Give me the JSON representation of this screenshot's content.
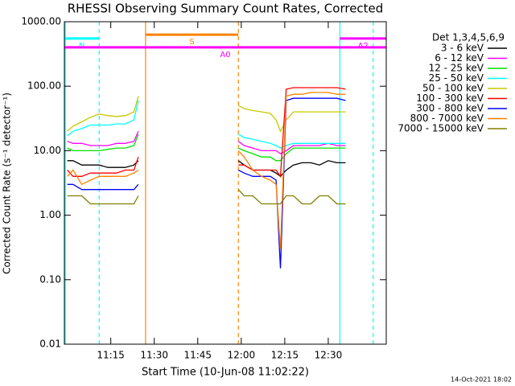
{
  "chart_data": {
    "type": "line",
    "title": "RHESSI Observing Summary Count Rates, Corrected",
    "xlabel": "Start Time (10-Jun-08 11:02:22)",
    "ylabel": "Corrected Count Rate (s⁻¹ detector⁻¹)",
    "legend_title": "Det 1,3,4,5,6,9",
    "footer": "14-Oct-2021 18:02",
    "log_y": true,
    "xlim": [
      659,
      770
    ],
    "ylim": [
      0.01,
      1000
    ],
    "xticks": [
      {
        "value": 675,
        "label": "11:15"
      },
      {
        "value": 690,
        "label": "11:30"
      },
      {
        "value": 705,
        "label": "11:45"
      },
      {
        "value": 720,
        "label": "12:00"
      },
      {
        "value": 735,
        "label": "12:15"
      },
      {
        "value": 750,
        "label": "12:30"
      }
    ],
    "yticks": [
      {
        "value": 1000,
        "label": "1000.00"
      },
      {
        "value": 100,
        "label": "100.00"
      },
      {
        "value": 10,
        "label": "10.00"
      },
      {
        "value": 1,
        "label": "1.00"
      },
      {
        "value": 0.1,
        "label": "0.10"
      },
      {
        "value": 0.01,
        "label": "0.01"
      }
    ],
    "x": [
      660,
      662,
      665,
      668,
      671,
      674,
      677,
      680,
      683,
      684.5,
      700,
      719,
      721,
      724,
      727,
      730,
      732,
      733.5,
      735.5,
      738,
      741,
      744,
      747,
      750,
      753,
      756
    ],
    "series": [
      {
        "name": "3 - 6 keV",
        "color": "#000000",
        "values": [
          7,
          7,
          6,
          6,
          6,
          5.5,
          5.5,
          5.5,
          6,
          7,
          null,
          7,
          6,
          5,
          5,
          5,
          4.5,
          4,
          5,
          6,
          6.5,
          6.5,
          6,
          7,
          6.5,
          6.5
        ]
      },
      {
        "name": "6 - 12 keV",
        "color": "#ff00ff",
        "values": [
          14,
          13,
          13,
          12,
          12,
          12,
          13,
          13,
          14,
          20,
          null,
          14,
          12,
          11,
          10,
          10,
          10,
          9,
          10,
          12,
          12,
          12,
          12,
          13,
          12,
          12
        ]
      },
      {
        "name": "12 - 25 keV",
        "color": "#00e000",
        "values": [
          11,
          10,
          10,
          10,
          10,
          10.5,
          11,
          11,
          12,
          18,
          null,
          11,
          10,
          9,
          8,
          8,
          7,
          7,
          9,
          11,
          11,
          11,
          11,
          11,
          11,
          11
        ]
      },
      {
        "name": "25 - 50 keV",
        "color": "#00ffff",
        "values": [
          17,
          20,
          22,
          25,
          25,
          25,
          26,
          26,
          30,
          60,
          null,
          18,
          16,
          15,
          14,
          13,
          12,
          11,
          12,
          13,
          13,
          13,
          13,
          13,
          13,
          13
        ]
      },
      {
        "name": "50 - 100 keV",
        "color": "#c8c800",
        "values": [
          20,
          24,
          28,
          33,
          37,
          35,
          34,
          35,
          40,
          70,
          null,
          50,
          45,
          42,
          40,
          38,
          30,
          20,
          30,
          40,
          40,
          40,
          40,
          40,
          40,
          40
        ]
      },
      {
        "name": "100 - 300 keV",
        "color": "#ff0000",
        "values": [
          5,
          4,
          4,
          4.5,
          4.5,
          4.5,
          4.5,
          5,
          5,
          8,
          null,
          6,
          6,
          5,
          5,
          5,
          5,
          4,
          90,
          95,
          95,
          95,
          95,
          95,
          95,
          90
        ]
      },
      {
        "name": "300 - 800 keV",
        "color": "#0000ff",
        "values": [
          3,
          3,
          2.5,
          2.5,
          2.5,
          2.5,
          2.5,
          2.5,
          2.5,
          3,
          null,
          5,
          4.5,
          4,
          4,
          4,
          3.5,
          0.15,
          60,
          65,
          65,
          65,
          65,
          65,
          65,
          60
        ]
      },
      {
        "name": "800 - 7000 keV",
        "color": "#ff8000",
        "values": [
          4,
          5,
          3,
          3.5,
          4,
          4,
          4,
          4,
          4.5,
          5,
          null,
          10,
          8,
          5,
          4,
          3.5,
          3,
          0.3,
          70,
          75,
          75,
          80,
          80,
          80,
          75,
          75
        ]
      },
      {
        "name": "7000 - 15000 keV",
        "color": "#808000",
        "values": [
          2,
          2,
          2,
          1.5,
          1.5,
          1.5,
          1.5,
          1.5,
          1.5,
          2,
          null,
          2.5,
          2,
          2,
          1.5,
          1.5,
          1.5,
          1.5,
          2,
          2,
          1.5,
          1.5,
          2,
          2,
          1.5,
          1.5
        ]
      }
    ],
    "intervals": [
      {
        "label": "N",
        "color": "#00ffff",
        "start": 659,
        "end": 671,
        "y": 550
      },
      {
        "label": "S",
        "color": "#ff8000",
        "start": 687,
        "end": 719,
        "y": 630
      },
      {
        "label": "A0",
        "color": "#ff00ff",
        "start": 659,
        "end": 770,
        "y": 400
      },
      {
        "label": "A2",
        "color": "#ff00ff",
        "start": 754,
        "end": 770,
        "y": 550
      }
    ],
    "vlines": [
      {
        "x": 659.3,
        "color": "#00ffff",
        "dashed": false
      },
      {
        "x": 671,
        "color": "#00ffff",
        "dashed": true
      },
      {
        "x": 687,
        "color": "#ff8000",
        "dashed": false
      },
      {
        "x": 719,
        "color": "#ff8000",
        "dashed": true
      },
      {
        "x": 754,
        "color": "#00ffff",
        "dashed": false
      },
      {
        "x": 765.5,
        "color": "#00ffff",
        "dashed": true
      }
    ]
  }
}
